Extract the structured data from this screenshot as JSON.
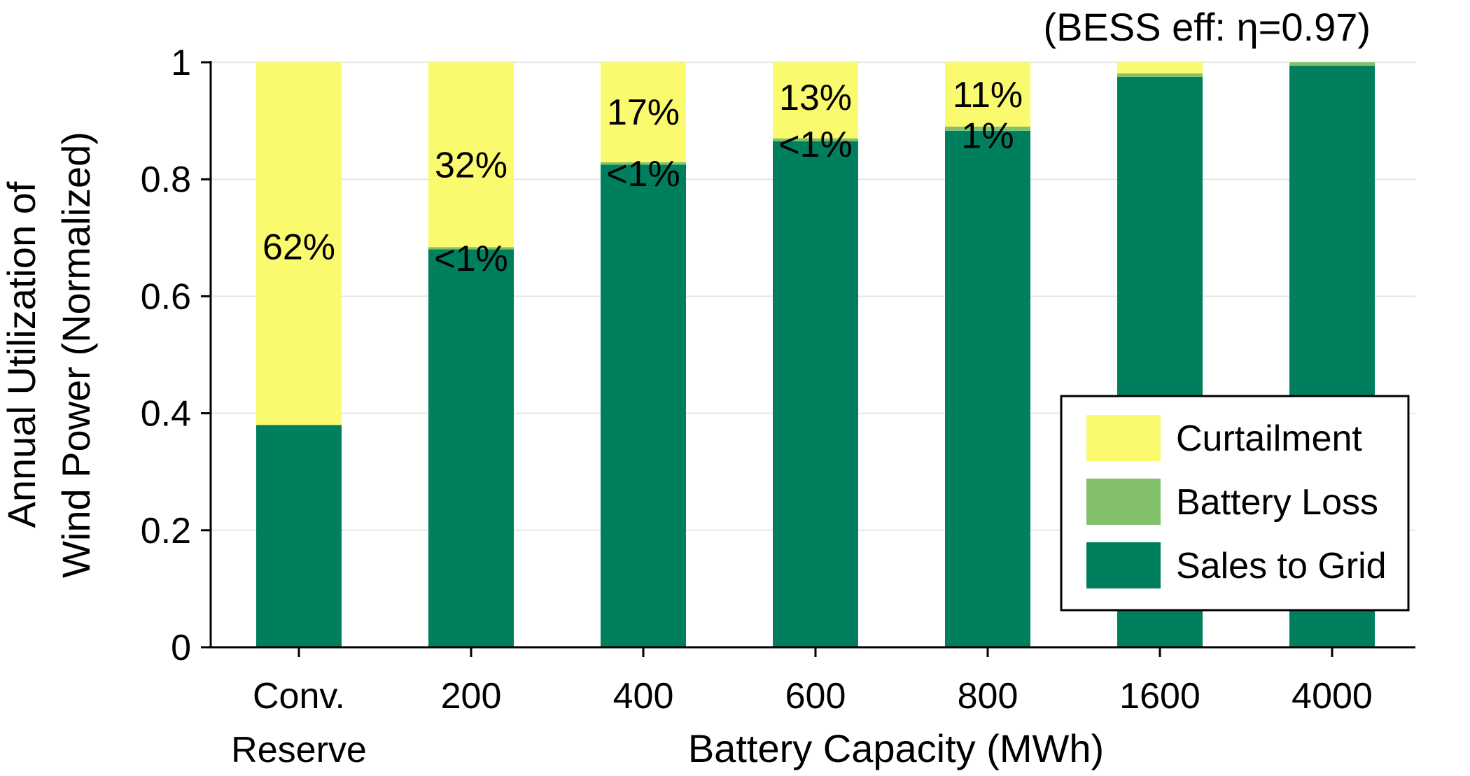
{
  "chart_data": {
    "type": "bar",
    "stacked": true,
    "subtitle": "(BESS eff: η=0.97)",
    "xlabel": "Battery Capacity (MWh)",
    "ylabel_lines": [
      "Annual Utilization of",
      "Wind Power (Normalized)"
    ],
    "ylim": [
      0,
      1
    ],
    "yticks": [
      "0",
      "0.2",
      "0.4",
      "0.6",
      "0.8",
      "1"
    ],
    "grid": true,
    "legend_position": "bottom-right",
    "categories": [
      [
        "Conv.",
        "Reserve"
      ],
      [
        "200"
      ],
      [
        "400"
      ],
      [
        "600"
      ],
      [
        "800"
      ],
      [
        "1600"
      ],
      [
        "4000"
      ]
    ],
    "series": [
      {
        "name": "Sales to Grid",
        "color": "#007f5f",
        "values": [
          0.38,
          0.68,
          0.825,
          0.865,
          0.883,
          0.975,
          0.994
        ]
      },
      {
        "name": "Battery Loss",
        "color": "#82c06b",
        "values": [
          0.0,
          0.004,
          0.004,
          0.005,
          0.007,
          0.006,
          0.006
        ]
      },
      {
        "name": "Curtailment",
        "color": "#fafa6e",
        "values": [
          0.62,
          0.316,
          0.171,
          0.13,
          0.11,
          0.019,
          0.0
        ]
      }
    ],
    "legend_order": [
      "Curtailment",
      "Battery Loss",
      "Sales to Grid"
    ],
    "annotations": [
      {
        "category_index": 0,
        "text": "62%",
        "y": 0.685
      },
      {
        "category_index": 1,
        "text": "32%",
        "y": 0.825
      },
      {
        "category_index": 1,
        "text": "<1%",
        "y": 0.665
      },
      {
        "category_index": 2,
        "text": "17%",
        "y": 0.915
      },
      {
        "category_index": 2,
        "text": "<1%",
        "y": 0.81
      },
      {
        "category_index": 3,
        "text": "13%",
        "y": 0.94
      },
      {
        "category_index": 3,
        "text": "<1%",
        "y": 0.86
      },
      {
        "category_index": 4,
        "text": "11%",
        "y": 0.945
      },
      {
        "category_index": 4,
        "text": "1%",
        "y": 0.875
      }
    ]
  }
}
